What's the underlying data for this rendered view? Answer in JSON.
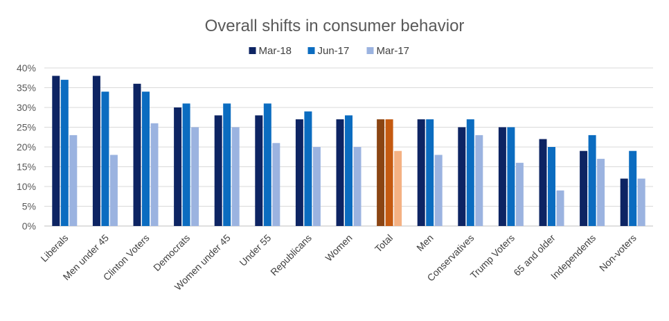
{
  "chart_data": {
    "type": "bar",
    "title": "Overall shifts in consumer behavior",
    "xlabel": "",
    "ylabel": "",
    "ylim": [
      0,
      40
    ],
    "y_ticks": [
      "0%",
      "5%",
      "10%",
      "15%",
      "20%",
      "25%",
      "30%",
      "35%",
      "40%"
    ],
    "y_tick_values": [
      0,
      5,
      10,
      15,
      20,
      25,
      30,
      35,
      40
    ],
    "grid": true,
    "legend_position": "top-center",
    "categories": [
      "Liberals",
      "Men under 45",
      "Clinton Voters",
      "Democrats",
      "Women under 45",
      "Under 55",
      "Republicans",
      "Women",
      "Total",
      "Men",
      "Conservatives",
      "Trump Voters",
      "65 and older",
      "Independents",
      "Non-voters"
    ],
    "series": [
      {
        "name": "Mar-18",
        "color": "#0d2463",
        "values": [
          38,
          38,
          36,
          30,
          28,
          28,
          27,
          27,
          27,
          27,
          25,
          25,
          22,
          19,
          12
        ]
      },
      {
        "name": "Jun-17",
        "color": "#0b6cc0",
        "values": [
          37,
          34,
          34,
          31,
          31,
          31,
          29,
          28,
          27,
          27,
          27,
          25,
          20,
          23,
          19
        ]
      },
      {
        "name": "Mar-17",
        "color": "#9bb3e0",
        "values": [
          23,
          18,
          26,
          25,
          25,
          21,
          20,
          20,
          19,
          18,
          23,
          16,
          9,
          17,
          12
        ]
      }
    ],
    "highlight": {
      "category": "Total",
      "colors": [
        "#8b4513",
        "#c55a11",
        "#f4b183"
      ]
    }
  }
}
